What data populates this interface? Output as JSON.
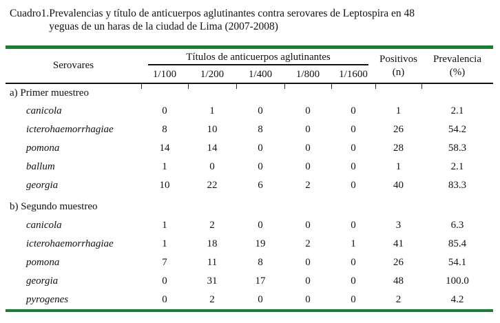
{
  "caption": {
    "label": "Cuadro1.",
    "text": "Prevalencias y título de anticuerpos aglutinantes contra serovares de Leptospira en 48\nyeguas de un haras de la ciudad de Lima (2007-2008)"
  },
  "table": {
    "header": {
      "serovares": "Serovares",
      "titers_group": "Títulos de anticuerpos aglutinantes",
      "dilutions": [
        "1/100",
        "1/200",
        "1/400",
        "1/800",
        "1/1600"
      ],
      "positivos_line1": "Positivos",
      "positivos_line2": "(n)",
      "prevalencia_line1": "Prevalencia",
      "prevalencia_line2": "(%)"
    },
    "sections": [
      {
        "label": "a) Primer muestreo",
        "rows": [
          {
            "serovar": "canicola",
            "titers": [
              "0",
              "1",
              "0",
              "0",
              "0"
            ],
            "positivos": "1",
            "prevalencia": "2.1"
          },
          {
            "serovar": "icterohaemorrhagiae",
            "titers": [
              "8",
              "10",
              "8",
              "0",
              "0"
            ],
            "positivos": "26",
            "prevalencia": "54.2"
          },
          {
            "serovar": "pomona",
            "titers": [
              "14",
              "14",
              "0",
              "0",
              "0"
            ],
            "positivos": "28",
            "prevalencia": "58.3"
          },
          {
            "serovar": "ballum",
            "titers": [
              "1",
              "0",
              "0",
              "0",
              "0"
            ],
            "positivos": "1",
            "prevalencia": "2.1"
          },
          {
            "serovar": "georgia",
            "titers": [
              "10",
              "22",
              "6",
              "2",
              "0"
            ],
            "positivos": "40",
            "prevalencia": "83.3"
          }
        ]
      },
      {
        "label": "b) Segundo muestreo",
        "rows": [
          {
            "serovar": "canicola",
            "titers": [
              "1",
              "2",
              "0",
              "0",
              "0"
            ],
            "positivos": "3",
            "prevalencia": "6.3"
          },
          {
            "serovar": "icterohaemorrhagiae",
            "titers": [
              "1",
              "18",
              "19",
              "2",
              "1"
            ],
            "positivos": "41",
            "prevalencia": "85.4"
          },
          {
            "serovar": "pomona",
            "titers": [
              "7",
              "11",
              "8",
              "0",
              "0"
            ],
            "positivos": "26",
            "prevalencia": "54.1"
          },
          {
            "serovar": "georgia",
            "titers": [
              "0",
              "31",
              "17",
              "0",
              "0"
            ],
            "positivos": "48",
            "prevalencia": "100.0"
          },
          {
            "serovar": "pyrogenes",
            "titers": [
              "0",
              "2",
              "0",
              "0",
              "0"
            ],
            "positivos": "2",
            "prevalencia": "4.2"
          }
        ]
      }
    ]
  },
  "colors": {
    "rule_green": "#168030",
    "text": "#111111"
  }
}
